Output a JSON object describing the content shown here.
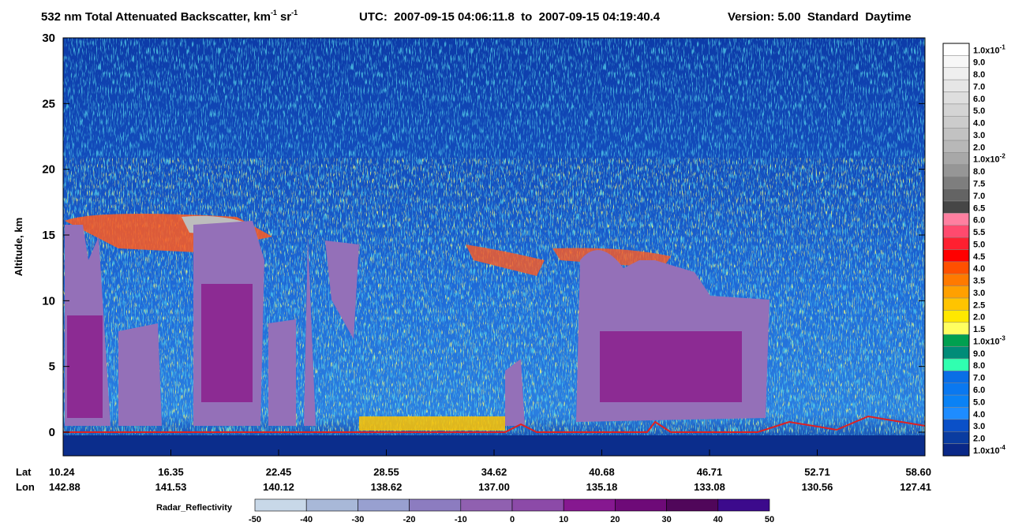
{
  "chart_data": {
    "type": "curtain",
    "title": "532 nm Total Attenuated Backscatter, km",
    "title_unit_exp": "-1",
    "title_unit2": "sr",
    "title_unit2_exp": "-1",
    "utc": "UTC:  2007-09-15 04:06:11.8  to  2007-09-15 04:19:40.4",
    "version": "Version: 5.00  Standard  Daytime",
    "ylabel": "Altitude, km",
    "ylim": [
      -1.8,
      30
    ],
    "yticks": [
      0,
      5,
      10,
      15,
      20,
      25,
      30
    ],
    "lat_label": "Lat",
    "lon_label": "Lon",
    "lat": [
      "10.24",
      "16.35",
      "22.45",
      "28.55",
      "34.62",
      "40.68",
      "46.71",
      "52.71",
      "58.60"
    ],
    "lon": [
      "142.88",
      "141.53",
      "140.12",
      "138.62",
      "137.00",
      "135.18",
      "133.08",
      "130.56",
      "127.41"
    ],
    "colorbar": {
      "labels": [
        "1.0x10",
        "9.0",
        "8.0",
        "7.0",
        "6.0",
        "5.0",
        "4.0",
        "3.0",
        "2.0",
        "1.0x10",
        "8.0",
        "7.5",
        "7.0",
        "6.5",
        "6.0",
        "5.5",
        "5.0",
        "4.5",
        "4.0",
        "3.5",
        "3.0",
        "2.5",
        "2.0",
        "1.5",
        "1.0x10",
        "9.0",
        "8.0",
        "7.0",
        "6.0",
        "5.0",
        "4.0",
        "3.0",
        "2.0",
        "1.0x10"
      ],
      "exponents": [
        "-1",
        null,
        null,
        null,
        null,
        null,
        null,
        null,
        null,
        "-2",
        null,
        null,
        null,
        null,
        null,
        null,
        null,
        null,
        null,
        null,
        null,
        null,
        null,
        null,
        "-3",
        null,
        null,
        null,
        null,
        null,
        null,
        null,
        null,
        "-4"
      ],
      "colors": [
        "#ffffff",
        "#f7f7f7",
        "#efefef",
        "#e6e6e6",
        "#dedede",
        "#d4d4d4",
        "#cccccc",
        "#c2c2c2",
        "#b8b8b8",
        "#a8a8a8",
        "#969696",
        "#7e7e7e",
        "#646464",
        "#464646",
        "#ff7fa0",
        "#ff4a6e",
        "#ff2030",
        "#ff0000",
        "#ff5000",
        "#ff7a00",
        "#ffa000",
        "#ffc400",
        "#ffe800",
        "#ffff60",
        "#00a050",
        "#008c78",
        "#30ffb0",
        "#0a6ee6",
        "#0a78f0",
        "#0a82f5",
        "#1e8cff",
        "#0a50c8",
        "#0a3ca0",
        "#0a2888"
      ]
    },
    "radar": {
      "label": "Radar_Reflectivity",
      "ticks": [
        -50,
        -40,
        -30,
        -20,
        -10,
        0,
        10,
        20,
        30,
        40,
        50
      ],
      "colors": [
        "#c8d8e8",
        "#a8b8d8",
        "#98a0d0",
        "#8c7cc0",
        "#9060b0",
        "#8c4aa8",
        "#861890",
        "#6e0a78",
        "#50065a",
        "#3c0a8c"
      ]
    }
  }
}
